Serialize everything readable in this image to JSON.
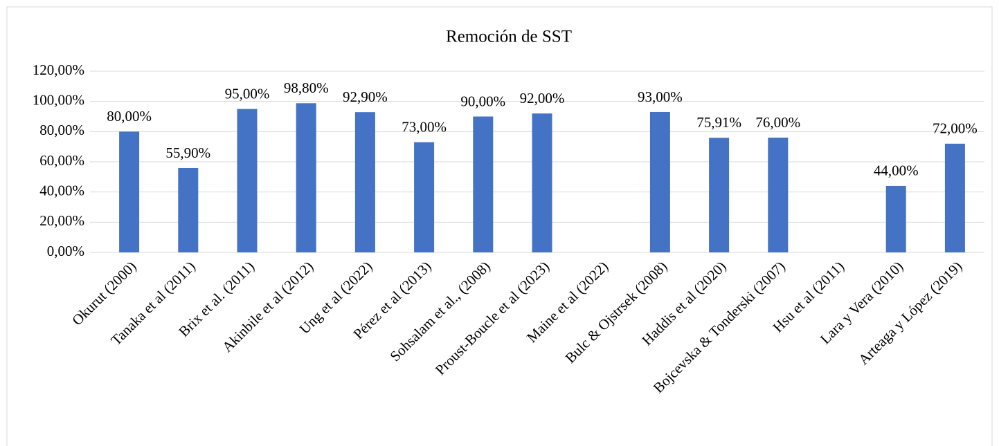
{
  "chart_data": {
    "type": "bar",
    "title": "Remoción de SST",
    "categories": [
      "Okurut (2000)",
      "Tanaka et al (2011)",
      "Brix et al. (2011)",
      "Akinbile et al (2012)",
      "Ung et al (2022)",
      "Pérez et al (2013)",
      "Sohsalam et al., (2008)",
      "Proust-Boucle et al (2023)",
      "Maine et al (2022)",
      "Bulc & Ojstrsek (2008)",
      "Haddis et al (2020)",
      "Bojcevska & Tonderski (2007)",
      "Hsu et al (2011)",
      "Lara y Vera (2010)",
      "Arteaga y López (2019)"
    ],
    "values": [
      80,
      55.9,
      95,
      98.8,
      92.9,
      73,
      90,
      92,
      null,
      93,
      75.91,
      76,
      null,
      44,
      72
    ],
    "value_labels": [
      "80,00%",
      "55,90%",
      "95,00%",
      "98,80%",
      "92,90%",
      "73,00%",
      "90,00%",
      "92,00%",
      null,
      "93,00%",
      "75,91%",
      "76,00%",
      null,
      "44,00%",
      "72,00%"
    ],
    "color": "#4472c4",
    "ylim": [
      0,
      120
    ],
    "yticks": [
      {
        "value": 0,
        "label": "0,00%"
      },
      {
        "value": 20,
        "label": "20,00%"
      },
      {
        "value": 40,
        "label": "40,00%"
      },
      {
        "value": 60,
        "label": "60,00%"
      },
      {
        "value": 80,
        "label": "80,00%"
      },
      {
        "value": 100,
        "label": "100,00%"
      },
      {
        "value": 120,
        "label": "120,00%"
      }
    ],
    "grid": true
  }
}
